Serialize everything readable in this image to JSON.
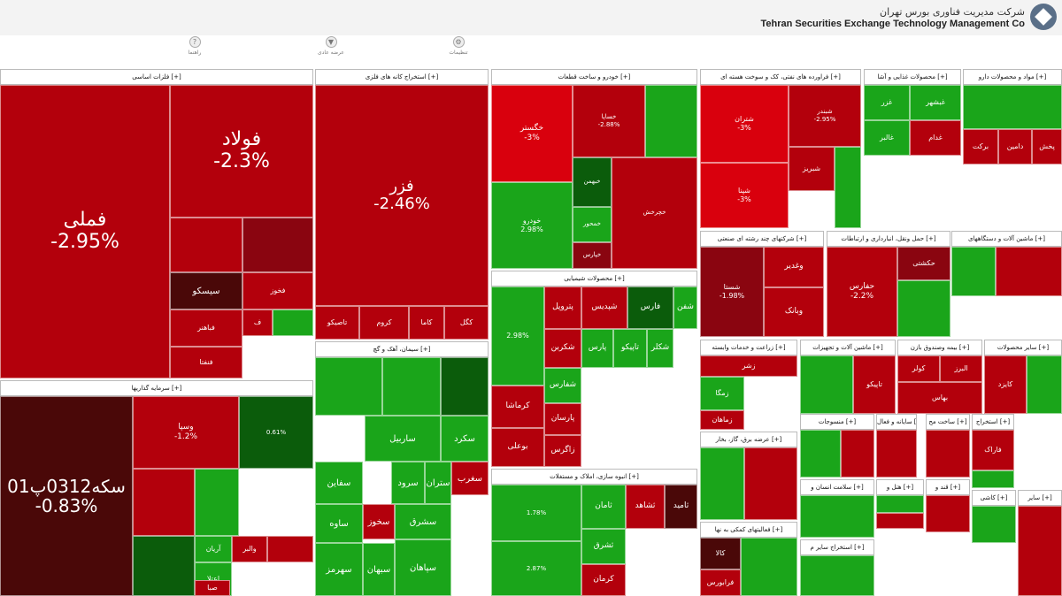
{
  "header": {
    "company_fa": "شرکت مدیریت فناوری بورس تهران",
    "company_en": "Tehran Securities Exchange Technology Management Co"
  },
  "toolbar": {
    "tools": [
      {
        "label": "راهنما",
        "icon": "?"
      },
      {
        "label": "عرضه عادی",
        "icon": "▼"
      },
      {
        "label": "تنظیمات",
        "icon": "⚙"
      }
    ]
  },
  "colors": {
    "dark_red": "#4a0808",
    "red": "#b3000c",
    "bright_red": "#d9000d",
    "deep_red": "#8a0510",
    "light_green": "#2fbf2f",
    "green": "#1aa51a",
    "dark_green": "#0b5c0b"
  },
  "sectors": [
    {
      "title": "فلزات اساسی [+]",
      "tiles": [
        {
          "name": "فملی",
          "pct": "-2.95%",
          "c": "red"
        },
        {
          "name": "فولاد",
          "pct": "-2.3%",
          "c": "red"
        },
        {
          "name": "",
          "pct": "",
          "c": "red"
        },
        {
          "name": "",
          "pct": "",
          "c": "deep_red"
        },
        {
          "name": "سیسکو",
          "pct": "",
          "c": "dark_red"
        },
        {
          "name": "فخوز",
          "pct": "",
          "c": "red"
        },
        {
          "name": "ف",
          "pct": "",
          "c": "red"
        },
        {
          "name": "",
          "pct": "",
          "c": "green"
        },
        {
          "name": "فباهنر",
          "pct": "",
          "c": "red"
        },
        {
          "name": "فنفتا",
          "pct": "",
          "c": "red"
        }
      ]
    },
    {
      "title": "استخراج کانه های فلزی [+]",
      "tiles": [
        {
          "name": "فزر",
          "pct": "-2.46%",
          "c": "red"
        },
        {
          "name": "تاصیکو",
          "pct": "",
          "c": "red"
        },
        {
          "name": "کروم",
          "pct": "",
          "c": "red"
        },
        {
          "name": "کاما",
          "pct": "",
          "c": "red"
        },
        {
          "name": "کگل",
          "pct": "",
          "c": "red"
        }
      ]
    },
    {
      "title": "خودرو و ساخت قطعات [+]",
      "tiles": [
        {
          "name": "خگستر",
          "pct": "-3%",
          "c": "bright_red"
        },
        {
          "name": "خساپا",
          "pct": "-2.88%",
          "c": "red"
        },
        {
          "name": "",
          "pct": "",
          "c": "green"
        },
        {
          "name": "خبهمن",
          "pct": "",
          "c": "dark_green"
        },
        {
          "name": "خودرو",
          "pct": "2.98%",
          "c": "green"
        },
        {
          "name": "خمحور",
          "pct": "",
          "c": "green"
        },
        {
          "name": "خپارس",
          "pct": "",
          "c": "deep_red"
        },
        {
          "name": "خچرخش",
          "pct": "",
          "c": "red"
        }
      ]
    },
    {
      "title": "فراورده های نفتی، کک و سوخت هسته ای [+]",
      "tiles": [
        {
          "name": "شتران",
          "pct": "-3%",
          "c": "bright_red"
        },
        {
          "name": "شپنا",
          "pct": "-3%",
          "c": "bright_red"
        },
        {
          "name": "شبندر",
          "pct": "-2.95%",
          "c": "red"
        },
        {
          "name": "شبریز",
          "pct": "",
          "c": "red"
        },
        {
          "name": "",
          "pct": "",
          "c": "green"
        }
      ]
    },
    {
      "title": "محصولات غذایی و آشا [+]",
      "tiles": [
        {
          "name": "غزر",
          "pct": "",
          "c": "green"
        },
        {
          "name": "غبشهر",
          "pct": "",
          "c": "green"
        },
        {
          "name": "غالبر",
          "pct": "",
          "c": "green"
        },
        {
          "name": "غدام",
          "pct": "",
          "c": "red"
        }
      ]
    },
    {
      "title": "مواد و محصولات دارو [+]",
      "tiles": [
        {
          "name": "",
          "pct": "",
          "c": "green"
        },
        {
          "name": "دامین",
          "pct": "",
          "c": "red"
        },
        {
          "name": "برکت",
          "pct": "",
          "c": "red"
        },
        {
          "name": "پخش",
          "pct": "",
          "c": "red"
        }
      ]
    },
    {
      "title": "سرمایه گذاریها [+]",
      "tiles": [
        {
          "name": "سکه0312پ01",
          "pct": "-0.83%",
          "c": "dark_red"
        },
        {
          "name": "وسپا",
          "pct": "-1.2%",
          "c": "red"
        },
        {
          "name": "",
          "pct": "0.61%",
          "c": "dark_green"
        },
        {
          "name": "",
          "pct": "",
          "c": "red"
        },
        {
          "name": "",
          "pct": "",
          "c": "green"
        },
        {
          "name": "آریان",
          "pct": "",
          "c": "green"
        },
        {
          "name": "والبر",
          "pct": "",
          "c": "red"
        },
        {
          "name": "اعتلا",
          "pct": "",
          "c": "green"
        },
        {
          "name": "",
          "pct": "",
          "c": "red"
        },
        {
          "name": "صبا",
          "pct": "",
          "c": "red"
        },
        {
          "name": "",
          "pct": "",
          "c": "dark_green"
        }
      ]
    },
    {
      "title": "سیمان، آهک و گچ [+]",
      "tiles": [
        {
          "name": "",
          "pct": "",
          "c": "green"
        },
        {
          "name": "",
          "pct": "",
          "c": "green"
        },
        {
          "name": "",
          "pct": "",
          "c": "dark_green"
        },
        {
          "name": "ساربیل",
          "pct": "",
          "c": "green"
        },
        {
          "name": "سکرد",
          "pct": "",
          "c": "green"
        },
        {
          "name": "سغرب",
          "pct": "",
          "c": "red"
        },
        {
          "name": "سفاین",
          "pct": "",
          "c": "green"
        },
        {
          "name": "سرود",
          "pct": "",
          "c": "green"
        },
        {
          "name": "ستران",
          "pct": "",
          "c": "green"
        },
        {
          "name": "ساوه",
          "pct": "",
          "c": "green"
        },
        {
          "name": "سخوز",
          "pct": "",
          "c": "red"
        },
        {
          "name": "سهرمز",
          "pct": "",
          "c": "green"
        },
        {
          "name": "سبهان",
          "pct": "",
          "c": "green"
        },
        {
          "name": "سشرق",
          "pct": "",
          "c": "green"
        },
        {
          "name": "سپاهان",
          "pct": "",
          "c": "green"
        }
      ]
    },
    {
      "title": "محصولات شیمیایی [+]",
      "tiles": [
        {
          "name": "پتروپل",
          "pct": "",
          "c": "red"
        },
        {
          "name": "شپدیس",
          "pct": "",
          "c": "red"
        },
        {
          "name": "فارس",
          "pct": "",
          "c": "dark_green"
        },
        {
          "name": "شفن",
          "pct": "",
          "c": "green"
        },
        {
          "name": "",
          "pct": "2.98%",
          "c": "green"
        },
        {
          "name": "شکربن",
          "pct": "",
          "c": "red"
        },
        {
          "name": "پارس",
          "pct": "",
          "c": "green"
        },
        {
          "name": "تاپیکو",
          "pct": "",
          "c": "green"
        },
        {
          "name": "شکلر",
          "pct": "",
          "c": "green"
        },
        {
          "name": "کرماشا",
          "pct": "",
          "c": "red"
        },
        {
          "name": "شفارس",
          "pct": "",
          "c": "green"
        },
        {
          "name": "پارسان",
          "pct": "",
          "c": "red"
        },
        {
          "name": "بوعلی",
          "pct": "",
          "c": "red"
        },
        {
          "name": "زاگرس",
          "pct": "",
          "c": "red"
        }
      ]
    },
    {
      "title": "انبوه سازی، املاک و مستغلات [+]",
      "tiles": [
        {
          "name": "",
          "pct": "1.78%",
          "c": "green"
        },
        {
          "name": "ثامان",
          "pct": "",
          "c": "green"
        },
        {
          "name": "ثشاهد",
          "pct": "",
          "c": "red"
        },
        {
          "name": "ثامید",
          "pct": "",
          "c": "dark_red"
        },
        {
          "name": "",
          "pct": "2.87%",
          "c": "green"
        },
        {
          "name": "ثشرق",
          "pct": "",
          "c": "green"
        },
        {
          "name": "کرمان",
          "pct": "",
          "c": "red"
        }
      ]
    },
    {
      "title": "عرضه برق، گاز، بخار [+]",
      "tiles": [
        {
          "name": "",
          "pct": "",
          "c": "green"
        },
        {
          "name": "",
          "pct": "",
          "c": "red"
        }
      ]
    },
    {
      "title": "ماشین آلات و دستگاههای [+]",
      "tiles": [
        {
          "name": "",
          "pct": "",
          "c": "green"
        },
        {
          "name": "",
          "pct": "",
          "c": "red"
        }
      ]
    },
    {
      "title": "شرکتهای چند رشته ای صنعتی [+]",
      "tiles": [
        {
          "name": "شستا",
          "pct": "-1.98%",
          "c": "deep_red"
        },
        {
          "name": "وغدیر",
          "pct": "",
          "c": "red"
        },
        {
          "name": "وبانک",
          "pct": "",
          "c": "red"
        }
      ]
    },
    {
      "title": "حمل ونقل، انبارداری و ارتباطات [+]",
      "tiles": [
        {
          "name": "حفارس",
          "pct": "-2.2%",
          "c": "red"
        },
        {
          "name": "حکشتی",
          "pct": "",
          "c": "deep_red"
        },
        {
          "name": "",
          "pct": "",
          "c": "green"
        }
      ]
    },
    {
      "title": "زراعت و خدمات وابسته [+]",
      "tiles": [
        {
          "name": "زشر",
          "pct": "",
          "c": "red"
        },
        {
          "name": "زمگا",
          "pct": "",
          "c": "green"
        },
        {
          "name": "زماهان",
          "pct": "",
          "c": "red"
        }
      ]
    },
    {
      "title": "ماشین آلات و تجهیزات [+]",
      "tiles": [
        {
          "name": "",
          "pct": "",
          "c": "green"
        },
        {
          "name": "تاپیکو",
          "pct": "",
          "c": "red"
        }
      ]
    },
    {
      "title": "بیمه وصندوق بازن [+]",
      "tiles": [
        {
          "name": "کولر",
          "pct": "",
          "c": "red"
        },
        {
          "name": "البرز",
          "pct": "",
          "c": "red"
        },
        {
          "name": "بهاس",
          "pct": "",
          "c": "red"
        }
      ]
    },
    {
      "title": "سایر محصولات [+]",
      "tiles": [
        {
          "name": "کایزد",
          "pct": "",
          "c": "red"
        },
        {
          "name": "",
          "pct": "",
          "c": "green"
        }
      ]
    },
    {
      "title": "منسوجات [+]",
      "tiles": [
        {
          "name": "",
          "pct": "",
          "c": "green"
        },
        {
          "name": "",
          "pct": "",
          "c": "red"
        }
      ]
    },
    {
      "title": "سایانه و فعال [+]",
      "tiles": [
        {
          "name": "",
          "pct": "",
          "c": "red"
        }
      ]
    },
    {
      "title": "فعالیتهای کمکی به نها [+]",
      "tiles": [
        {
          "name": "کالا",
          "pct": "",
          "c": "dark_red"
        },
        {
          "name": "فرابورس",
          "pct": "",
          "c": "red"
        },
        {
          "name": "",
          "pct": "",
          "c": "green"
        }
      ]
    },
    {
      "title": "استخراج سایر م [+]",
      "tiles": [
        {
          "name": "",
          "pct": "",
          "c": "green"
        }
      ]
    },
    {
      "title": "سلامت انسان و [+]",
      "tiles": [
        {
          "name": "",
          "pct": "",
          "c": "green"
        }
      ]
    },
    {
      "title": "هتل و [+]",
      "tiles": [
        {
          "name": "",
          "pct": "",
          "c": "green"
        },
        {
          "name": "",
          "pct": "",
          "c": "red"
        }
      ]
    },
    {
      "title": "ساخت مح [+]",
      "tiles": [
        {
          "name": "",
          "pct": "",
          "c": "red"
        }
      ]
    },
    {
      "title": "استخراج [+]",
      "tiles": [
        {
          "name": "فاراک",
          "pct": "",
          "c": "red"
        },
        {
          "name": "",
          "pct": "",
          "c": "green"
        }
      ]
    },
    {
      "title": "قند و [+]",
      "tiles": [
        {
          "name": "",
          "pct": "",
          "c": "red"
        }
      ]
    },
    {
      "title": "کاشی [+]",
      "tiles": [
        {
          "name": "",
          "pct": "",
          "c": "green"
        }
      ]
    },
    {
      "title": "سایر [+]",
      "tiles": [
        {
          "name": "",
          "pct": "",
          "c": "red"
        }
      ]
    }
  ]
}
